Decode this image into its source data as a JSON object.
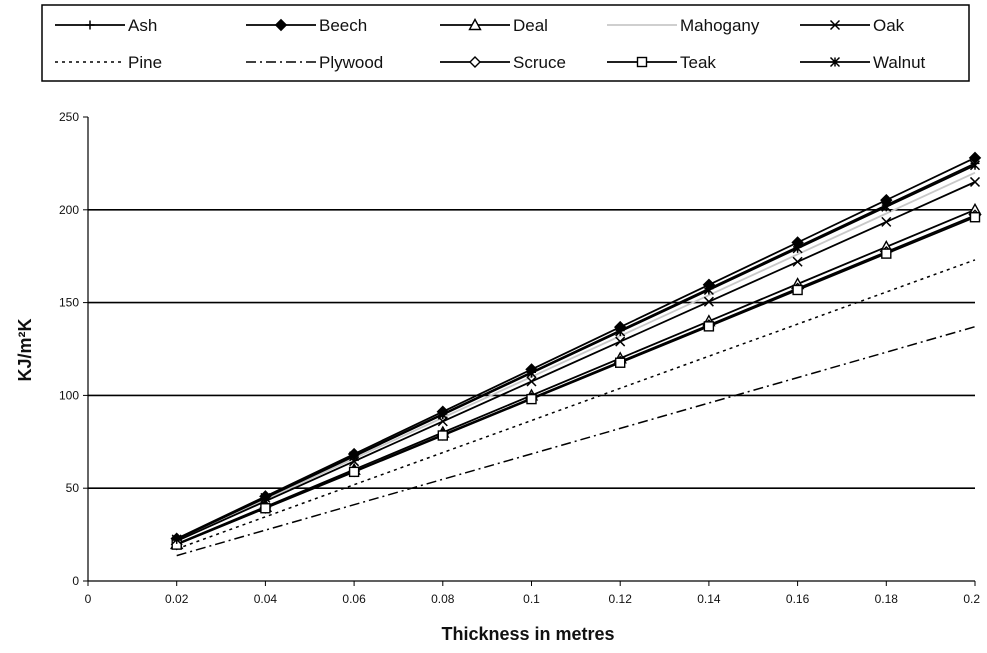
{
  "chart_data": {
    "type": "line",
    "title": "",
    "xlabel": "Thickness in metres",
    "ylabel": "KJ/m²K",
    "xlim": [
      0,
      0.2
    ],
    "ylim": [
      0,
      250
    ],
    "x_ticks": [
      "0",
      "0.02",
      "0.04",
      "0.06",
      "0.08",
      "0.1",
      "0.12",
      "0.14",
      "0.16",
      "0.18",
      "0.2"
    ],
    "y_ticks": [
      "0",
      "50",
      "100",
      "150",
      "200",
      "250"
    ],
    "y_gridlines": [
      50,
      100,
      150,
      200
    ],
    "legend_position": "top",
    "x": [
      0.02,
      0.04,
      0.06,
      0.08,
      0.1,
      0.12,
      0.14,
      0.16,
      0.18,
      0.2
    ],
    "series": [
      {
        "name": "Ash",
        "marker": "plus",
        "dash": "solid",
        "color": "#000000",
        "values": [
          22.5,
          45,
          67.5,
          90,
          112.5,
          135,
          157.5,
          180,
          202.5,
          225
        ]
      },
      {
        "name": "Beech",
        "marker": "diamond-filled",
        "dash": "solid",
        "color": "#000000",
        "values": [
          22.8,
          45.6,
          68.4,
          91.2,
          114,
          136.8,
          159.6,
          182.4,
          205.2,
          228
        ]
      },
      {
        "name": "Deal",
        "marker": "triangle-open",
        "dash": "solid",
        "color": "#000000",
        "values": [
          20,
          40,
          60,
          80,
          100,
          120,
          140,
          160,
          180,
          200
        ]
      },
      {
        "name": "Mahogany",
        "marker": "none",
        "dash": "solid",
        "color": "#c8c8c8",
        "values": [
          22,
          44,
          66,
          88,
          110,
          132,
          154,
          176,
          198,
          220
        ]
      },
      {
        "name": "Oak",
        "marker": "x",
        "dash": "solid",
        "color": "#000000",
        "values": [
          21.5,
          43,
          64.5,
          86,
          107.5,
          129,
          150.5,
          172,
          193.5,
          215
        ]
      },
      {
        "name": "Pine",
        "marker": "none",
        "dash": "dotted",
        "color": "#000000",
        "values": [
          17.3,
          34.6,
          51.9,
          69.2,
          86.5,
          103.8,
          121.1,
          138.4,
          155.7,
          173
        ]
      },
      {
        "name": "Plywood",
        "marker": "none",
        "dash": "dashdot",
        "color": "#000000",
        "values": [
          13.7,
          27.4,
          41.1,
          54.8,
          68.5,
          82.2,
          95.9,
          109.6,
          123.3,
          137
        ]
      },
      {
        "name": "Scruce",
        "marker": "diamond-open",
        "dash": "solid",
        "color": "#000000",
        "values": [
          19.7,
          39.4,
          59.1,
          78.8,
          98.5,
          118.2,
          137.9,
          157.6,
          177.3,
          197
        ]
      },
      {
        "name": "Teak",
        "marker": "square-open",
        "dash": "solid",
        "color": "#000000",
        "values": [
          19.6,
          39.2,
          58.8,
          78.4,
          98,
          117.6,
          137.2,
          156.8,
          176.4,
          196
        ]
      },
      {
        "name": "Walnut",
        "marker": "asterisk",
        "dash": "solid",
        "color": "#000000",
        "values": [
          22.4,
          44.8,
          67.2,
          89.6,
          112,
          134.4,
          156.8,
          179.2,
          201.6,
          224
        ]
      }
    ]
  }
}
